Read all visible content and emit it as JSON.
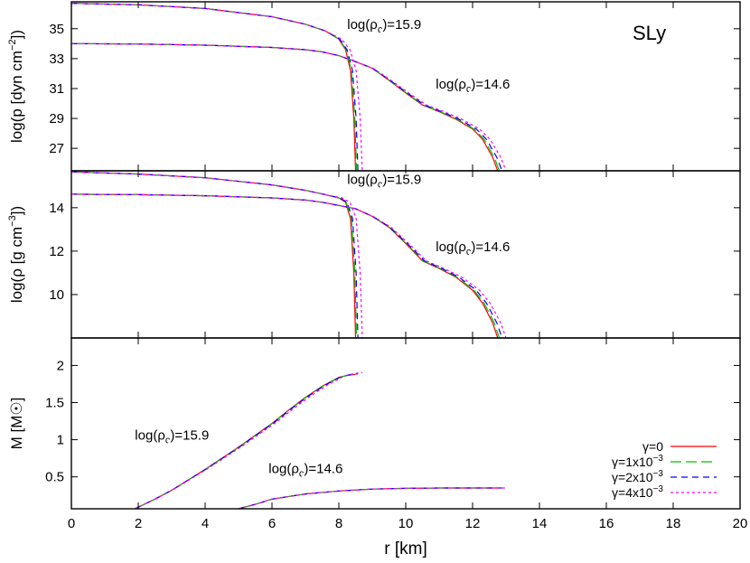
{
  "chart_data": {
    "type": "line",
    "eos_label": "SLy",
    "x": {
      "label": "r [km]",
      "lim": [
        0,
        20
      ],
      "ticks": [
        0,
        2,
        4,
        6,
        8,
        10,
        12,
        14,
        16,
        18,
        20
      ]
    },
    "series_styles": [
      {
        "label": "γ=0",
        "color": "#ff0000",
        "dash": ""
      },
      {
        "label": "γ=1x10⁻³",
        "color": "#00c000",
        "dash": "12,5"
      },
      {
        "label": "γ=2x10⁻³",
        "color": "#0000ff",
        "dash": "7,5"
      },
      {
        "label": "γ=4x10⁻³",
        "color": "#ff00ff",
        "dash": "3,3"
      }
    ],
    "panels": [
      {
        "ylabel": "log(p [dyn cm⁻²])",
        "ylim": [
          25.5,
          36.8
        ],
        "yticks": [
          27,
          29,
          31,
          33,
          35
        ],
        "annotations": [
          {
            "text": "log(ρc)=15.9",
            "x": 8.25,
            "y": 35.0
          },
          {
            "text": "log(ρc)=14.6",
            "x": 10.9,
            "y": 31.0
          }
        ],
        "curves": [
          {
            "id": "high",
            "R": [
              8.5,
              8.53,
              8.57,
              8.7
            ],
            "x": [
              0,
              2,
              4,
              6,
              7,
              7.6,
              8.0,
              8.2,
              8.35,
              8.45,
              8.5
            ],
            "y": [
              36.7,
              36.6,
              36.35,
              35.8,
              35.3,
              34.85,
              34.3,
              33.6,
              32.2,
              29.0,
              25.5
            ]
          },
          {
            "id": "low",
            "R": [
              12.75,
              12.8,
              12.88,
              13.0
            ],
            "x": [
              0,
              2,
              4,
              6,
              7,
              7.5,
              8,
              8.5,
              9,
              9.5,
              10,
              10.5,
              11,
              11.5,
              12,
              12.3,
              12.6,
              12.75
            ],
            "y": [
              34.0,
              33.98,
              33.9,
              33.75,
              33.6,
              33.45,
              33.2,
              32.8,
              32.35,
              31.55,
              30.7,
              29.9,
              29.45,
              28.95,
              28.3,
              27.6,
              26.4,
              25.5
            ]
          }
        ]
      },
      {
        "ylabel": "log(ρ [g cm⁻³])",
        "ylim": [
          8.0,
          15.7
        ],
        "yticks": [
          10,
          12,
          14
        ],
        "annotations": [
          {
            "text": "log(ρc)=15.9",
            "x": 8.25,
            "y": 15.1
          },
          {
            "text": "log(ρc)=14.6",
            "x": 10.9,
            "y": 12.0
          }
        ],
        "curves": [
          {
            "id": "high",
            "R": [
              8.5,
              8.53,
              8.57,
              8.7
            ],
            "x": [
              0,
              2,
              4,
              6,
              7,
              7.6,
              8.0,
              8.2,
              8.35,
              8.45,
              8.5
            ],
            "y": [
              15.65,
              15.55,
              15.38,
              15.05,
              14.8,
              14.6,
              14.45,
              14.25,
              13.5,
              11.0,
              8.0
            ]
          },
          {
            "id": "low",
            "R": [
              12.75,
              12.8,
              12.88,
              13.0
            ],
            "x": [
              0,
              2,
              4,
              6,
              7,
              7.5,
              8,
              8.5,
              9,
              9.5,
              10,
              10.5,
              11,
              11.5,
              12,
              12.3,
              12.6,
              12.75
            ],
            "y": [
              14.62,
              14.6,
              14.55,
              14.45,
              14.35,
              14.25,
              14.1,
              13.95,
              13.6,
              13.1,
              12.35,
              11.55,
              11.2,
              10.8,
              10.2,
              9.6,
              8.7,
              8.0
            ]
          }
        ]
      },
      {
        "ylabel": "M [M☉]",
        "ylim": [
          0.07,
          2.37
        ],
        "yticks": [
          0.5,
          1.0,
          1.5,
          2.0
        ],
        "ytick_labels": [
          "0.5",
          "1",
          "1.5",
          "2"
        ],
        "annotations": [
          {
            "text": "log(ρc)=15.9",
            "x": 1.9,
            "y": 1.0
          },
          {
            "text": "log(ρc)=14.6",
            "x": 5.9,
            "y": 0.55
          }
        ],
        "curves": [
          {
            "id": "high",
            "R": [
              8.5,
              8.53,
              8.57,
              8.7
            ],
            "x": [
              1.9,
              2.5,
              3,
              4,
              5,
              6,
              6.5,
              7,
              7.5,
              8,
              8.3,
              8.5
            ],
            "y": [
              0.07,
              0.2,
              0.32,
              0.6,
              0.9,
              1.22,
              1.4,
              1.57,
              1.72,
              1.84,
              1.87,
              1.88
            ]
          },
          {
            "id": "low",
            "R": [
              12.75,
              12.8,
              12.88,
              13.0
            ],
            "x": [
              5.0,
              5.5,
              6,
              7,
              8,
              9,
              10,
              11,
              12,
              12.75
            ],
            "y": [
              0.07,
              0.13,
              0.2,
              0.27,
              0.31,
              0.335,
              0.345,
              0.35,
              0.35,
              0.35
            ]
          }
        ]
      }
    ],
    "legend": {
      "position": "bottom-right",
      "entries": [
        "γ=0",
        "γ=1x10⁻³",
        "γ=2x10⁻³",
        "γ=4x10⁻³"
      ]
    }
  }
}
